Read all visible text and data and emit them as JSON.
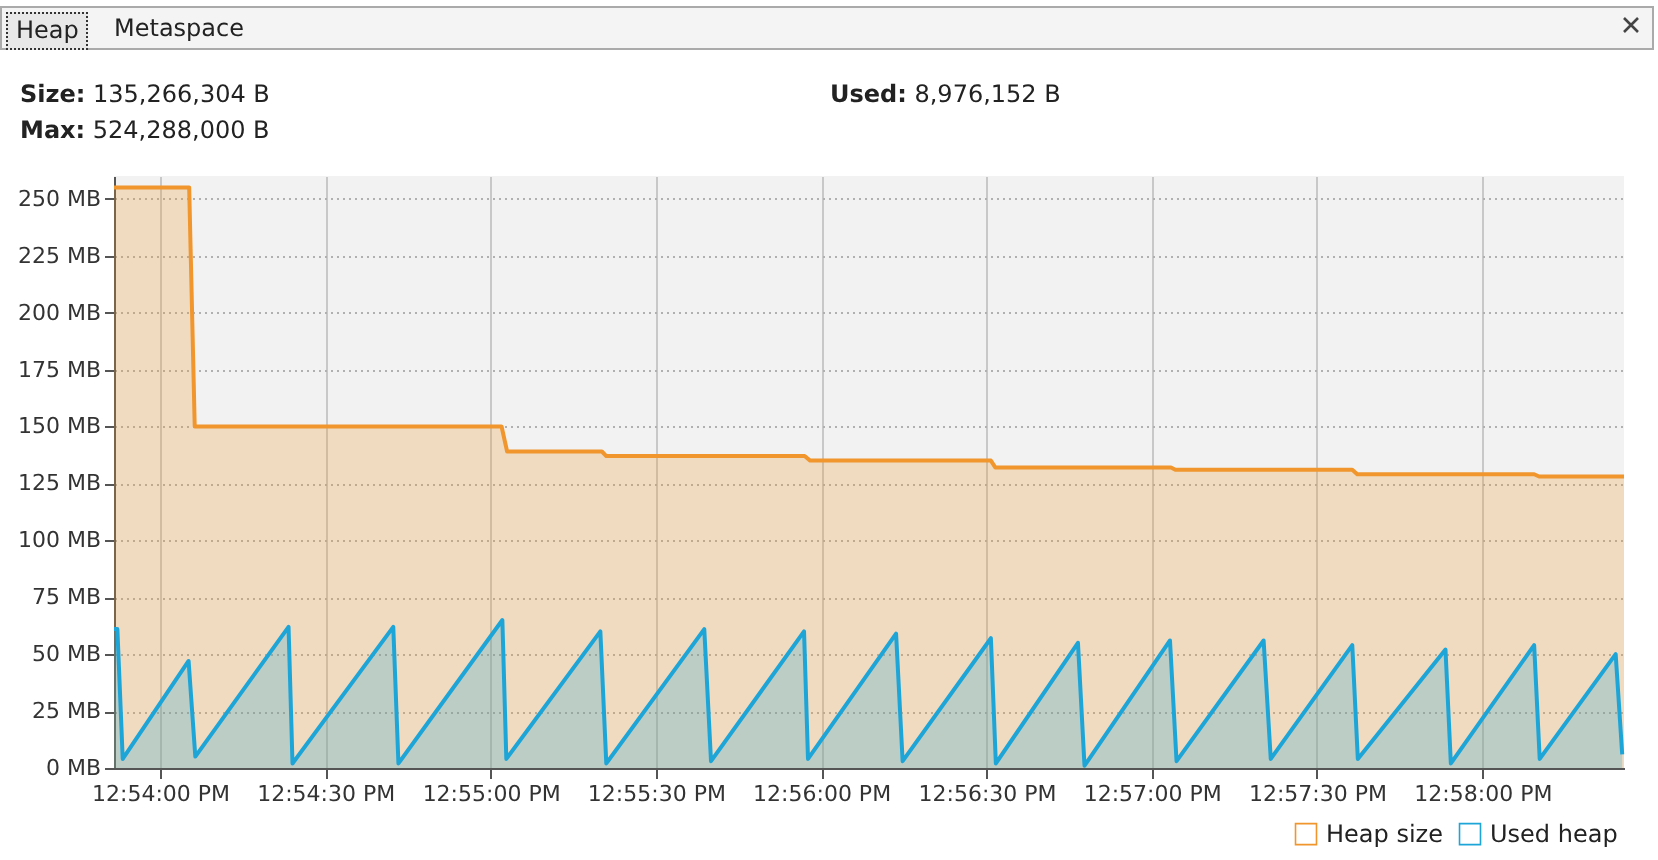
{
  "chart_data": {
    "type": "area",
    "title": "Heap",
    "subtitle": "Metaspace",
    "annotations": [
      "Size: 135,266,304 B",
      "Max: 524,288,000 B",
      "Used: 8,976,152 B"
    ],
    "xlim": [
      12.89768,
      12.97381
    ],
    "ylim": [
      0,
      260
    ],
    "xticks": [
      {
        "value": 12.9,
        "label": "12:54:00 PM"
      },
      {
        "value": 12.90833,
        "label": "12:54:30 PM"
      },
      {
        "value": 12.91667,
        "label": "12:55:00 PM"
      },
      {
        "value": 12.925,
        "label": "12:55:30 PM"
      },
      {
        "value": 12.93333,
        "label": "12:56:00 PM"
      },
      {
        "value": 12.94167,
        "label": "12:56:30 PM"
      },
      {
        "value": 12.95,
        "label": "12:57:00 PM"
      },
      {
        "value": 12.95833,
        "label": "12:57:30 PM"
      },
      {
        "value": 12.96667,
        "label": "12:58:00 PM"
      }
    ],
    "yticks": [
      {
        "value": 0,
        "label": "0 MB"
      },
      {
        "value": 25,
        "label": "25 MB"
      },
      {
        "value": 50,
        "label": "50 MB"
      },
      {
        "value": 75,
        "label": "75 MB"
      },
      {
        "value": 100,
        "label": "100 MB"
      },
      {
        "value": 125,
        "label": "125 MB"
      },
      {
        "value": 150,
        "label": "150 MB"
      },
      {
        "value": 175,
        "label": "175 MB"
      },
      {
        "value": 200,
        "label": "200 MB"
      },
      {
        "value": 225,
        "label": "225 MB"
      },
      {
        "value": 250,
        "label": "250 MB"
      }
    ],
    "grid": true,
    "legend": "bottom right",
    "series": [
      {
        "name": "Heap size",
        "color": "#f0962d",
        "x": [
          12.89768,
          12.90147,
          12.90175,
          12.91722,
          12.9175,
          12.92228,
          12.9225,
          12.9325,
          12.93278,
          12.94189,
          12.94211,
          12.95097,
          12.95119,
          12.96011,
          12.96036,
          12.96928,
          12.96953,
          12.97381
        ],
        "values": [
          255,
          255,
          150,
          150,
          139,
          139,
          137,
          137,
          135,
          135,
          132,
          132,
          131,
          131,
          129,
          129,
          128,
          128
        ]
      },
      {
        "name": "Used heap",
        "color": "#1ea5d8",
        "x": [
          12.89768,
          12.89785,
          12.89812,
          12.90144,
          12.90178,
          12.90648,
          12.90668,
          12.91176,
          12.91202,
          12.91726,
          12.91746,
          12.9222,
          12.9225,
          12.92744,
          12.92778,
          12.93247,
          12.93267,
          12.93711,
          12.93744,
          12.94189,
          12.94214,
          12.94628,
          12.94661,
          12.95092,
          12.95125,
          12.95564,
          12.956,
          12.96011,
          12.96039,
          12.96481,
          12.96508,
          12.96928,
          12.96956,
          12.97339,
          12.97372
        ],
        "values": [
          61,
          61,
          4,
          47,
          5,
          62,
          2,
          62,
          2,
          65,
          4,
          60,
          2,
          61,
          3,
          60,
          4,
          59,
          3,
          57,
          2,
          55,
          1,
          56,
          3,
          56,
          4,
          54,
          4,
          52,
          2,
          54,
          4,
          50,
          6
        ]
      }
    ]
  }
}
